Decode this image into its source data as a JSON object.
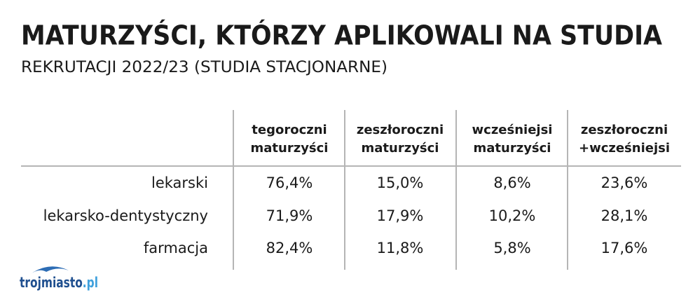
{
  "header": {
    "title": "MATURZYŚCI, KTÓRZY APLIKOWALI NA STUDIA",
    "subtitle": "REKRUTACJI 2022/23 (STUDIA STACJONARNE)"
  },
  "table": {
    "columns": [
      {
        "lines": [
          "tegoroczni",
          "maturzyści"
        ]
      },
      {
        "lines": [
          "zeszłoroczni",
          "maturzyści"
        ]
      },
      {
        "lines": [
          "wcześniejsi",
          "maturzyści"
        ]
      },
      {
        "lines": [
          "zeszłoroczni",
          "+wcześniejsi"
        ]
      }
    ],
    "rows": [
      {
        "label": "lekarski",
        "cells": [
          "76,4%",
          "15,0%",
          "8,6%",
          "23,6%"
        ]
      },
      {
        "label": "lekarsko-dentystyczny",
        "cells": [
          "71,9%",
          "17,9%",
          "10,2%",
          "28,1%"
        ]
      },
      {
        "label": "farmacja",
        "cells": [
          "82,4%",
          "11,8%",
          "5,8%",
          "17,6%"
        ]
      }
    ]
  },
  "logo": {
    "name": "trojmiasto",
    "suffix": ".pl"
  }
}
